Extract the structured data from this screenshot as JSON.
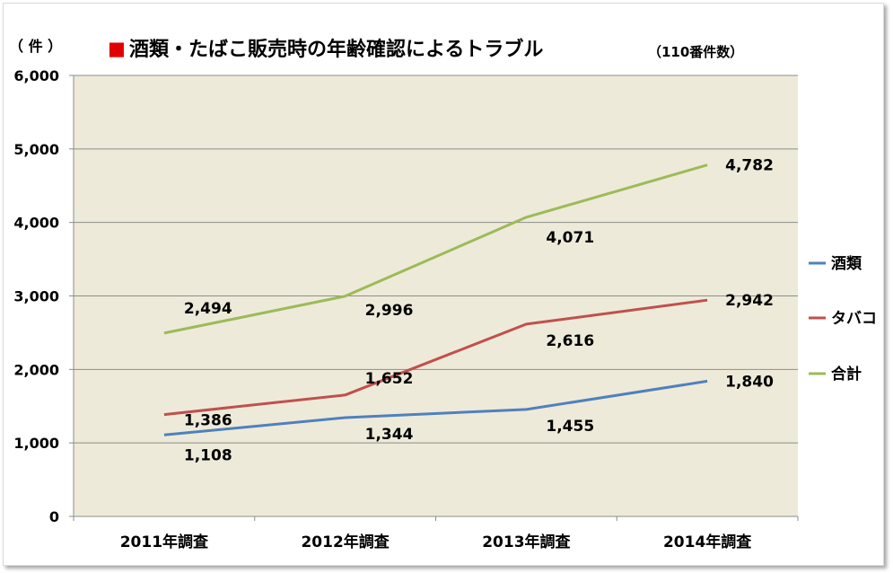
{
  "chart_data": {
    "type": "line",
    "title": "酒類・たばこ販売時の年齢確認によるトラブル",
    "title_marker": "■",
    "subtitle": "（110番件数）",
    "ylabel": "（ 件 ）",
    "xlabel": "",
    "categories": [
      "2011年調査",
      "2012年調査",
      "2013年調査",
      "2014年調査"
    ],
    "ylim": [
      0,
      6000
    ],
    "yticks": [
      0,
      1000,
      2000,
      3000,
      4000,
      5000,
      6000
    ],
    "ytick_labels": [
      "0",
      "1,000",
      "2,000",
      "3,000",
      "4,000",
      "5,000",
      "6,000"
    ],
    "grid": true,
    "legend_position": "right",
    "series": [
      {
        "name": "酒類",
        "values": [
          1108,
          1344,
          1455,
          1840
        ],
        "labels": [
          "1,108",
          "1,344",
          "1,455",
          "1,840"
        ],
        "color": "#4F81BD"
      },
      {
        "name": "タバコ",
        "values": [
          1386,
          1652,
          2616,
          2942
        ],
        "labels": [
          "1,386",
          "1,652",
          "2,616",
          "2,942"
        ],
        "color": "#C0504D"
      },
      {
        "name": "合計",
        "values": [
          2494,
          2996,
          4071,
          4782
        ],
        "labels": [
          "2,494",
          "2,996",
          "4,071",
          "4,782"
        ],
        "color": "#9BBB59"
      }
    ]
  },
  "colors": {
    "plot_background": "#EEEAD9",
    "gridline": "#8C8C8C",
    "title_marker": "#E00000",
    "text": "#000000"
  }
}
